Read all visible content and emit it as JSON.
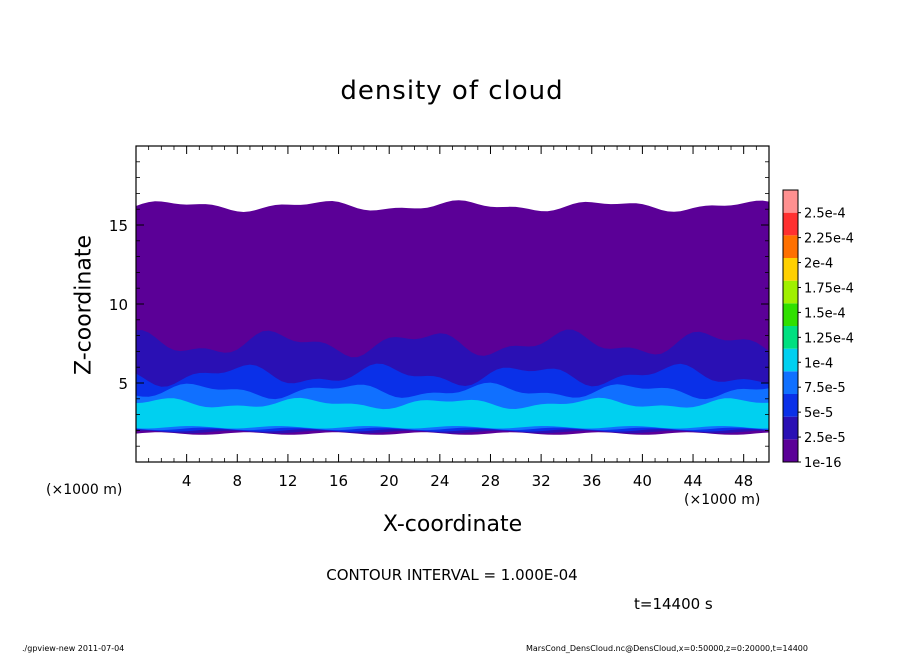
{
  "chart_data": {
    "type": "heatmap",
    "title": "density of cloud",
    "xlabel": "X-coordinate",
    "ylabel": "Z-coordinate",
    "x_unit_label": "(×1000 m)",
    "xlim": [
      0,
      50
    ],
    "ylim": [
      0,
      20
    ],
    "x_ticks": [
      4,
      8,
      12,
      16,
      20,
      24,
      28,
      32,
      36,
      40,
      44,
      48
    ],
    "y_ticks": [
      5,
      10,
      15
    ],
    "colorbar": {
      "labels": [
        "1e-16",
        "2.5e-5",
        "5e-5",
        "7.5e-5",
        "1e-4",
        "1.25e-4",
        "1.5e-4",
        "1.75e-4",
        "2e-4",
        "2.25e-4",
        "2.5e-4"
      ],
      "colors": [
        "#5b0097",
        "#2a10b4",
        "#0a30e8",
        "#1070ff",
        "#00d0f0",
        "#00e080",
        "#30e000",
        "#a0f000",
        "#ffd000",
        "#ff7000",
        "#ff3030",
        "#ff9090"
      ]
    },
    "bands": [
      {
        "level": 0,
        "z_bottom": 1.8,
        "z_top": 16.2
      },
      {
        "level": 1,
        "z_bottom": 1.9,
        "z_top": 7.5
      },
      {
        "level": 2,
        "z_bottom": 2.0,
        "z_top": 5.5
      },
      {
        "level": 3,
        "z_bottom": 2.1,
        "z_top": 4.5
      },
      {
        "level": 4,
        "z_bottom": 2.2,
        "z_top": 3.7
      }
    ],
    "contour_interval": "CONTOUR INTERVAL = 1.000E-04",
    "time_label": "t=14400 s"
  },
  "footer": {
    "left": "./gpview-new  2011-07-04",
    "right": "MarsCond_DensCloud.nc@DensCloud,x=0:50000,z=0:20000,t=14400"
  }
}
